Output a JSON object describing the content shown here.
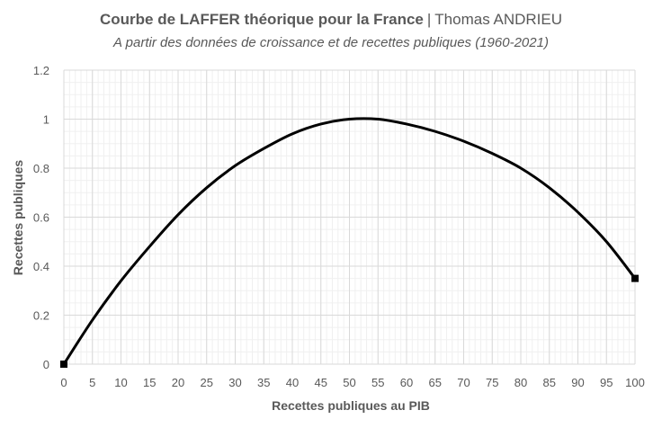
{
  "header": {
    "title": "Courbe de LAFFER théorique pour la France",
    "separator": "|",
    "author": "Thomas ANDRIEU",
    "subtitle": "A partir des données de croissance et de recettes publiques (1960-2021)"
  },
  "chart_data": {
    "type": "line",
    "xlabel": "Recettes publiques au PIB",
    "ylabel": "Recettes publiques",
    "xlim": [
      0,
      100
    ],
    "ylim": [
      0,
      1.2
    ],
    "xticks": [
      0,
      5,
      10,
      15,
      20,
      25,
      30,
      35,
      40,
      45,
      50,
      55,
      60,
      65,
      70,
      75,
      80,
      85,
      90,
      95,
      100
    ],
    "yticks": [
      0,
      0.2,
      0.4,
      0.6,
      0.8,
      1,
      1.2
    ],
    "ytick_labels": [
      "0",
      "0.2",
      "0.4",
      "0.6",
      "0.8",
      "1",
      "1.2"
    ],
    "grid": true,
    "line_color": "#000000",
    "grid_color": "#d9d9d9",
    "series": [
      {
        "x": [
          0,
          5,
          10,
          15,
          20,
          25,
          30,
          35,
          40,
          45,
          50,
          55,
          60,
          65,
          70,
          75,
          80,
          85,
          90,
          95,
          100
        ],
        "values": [
          0,
          0.18,
          0.34,
          0.48,
          0.61,
          0.72,
          0.81,
          0.88,
          0.94,
          0.98,
          1.0,
          1.0,
          0.98,
          0.95,
          0.91,
          0.86,
          0.8,
          0.72,
          0.62,
          0.5,
          0.35
        ]
      }
    ]
  }
}
